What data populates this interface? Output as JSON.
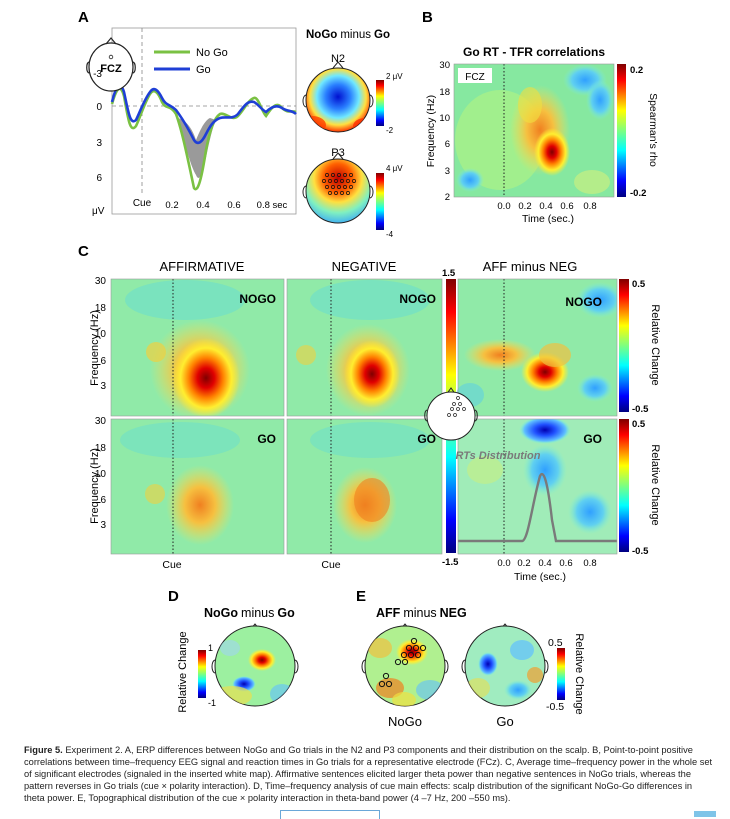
{
  "panels": {
    "A": {
      "letter": "A",
      "electrode": "FCZ",
      "legend": [
        "No Go",
        "Go"
      ],
      "title_prefix": "NoGo",
      "title_mid": "minus",
      "title_suffix": "Go",
      "y_ticks": [
        "-3",
        "0",
        "3",
        "6"
      ],
      "y_unit": "μV",
      "x_ticks": [
        "Cue",
        "0.2",
        "0.4",
        "0.6",
        "0.8 sec"
      ],
      "topo_labels": [
        "N2",
        "P3"
      ],
      "scale_n2": [
        "2 μV",
        "-2"
      ],
      "scale_p3": [
        "4 μV",
        "-4"
      ],
      "colors": {
        "nogo": "#7ac143",
        "go": "#1f3fd6",
        "diff_fill": "#9a9a9a"
      }
    },
    "B": {
      "letter": "B",
      "title": "Go RT - TFR correlations",
      "tag": "FCZ",
      "y_label": "Frequency (Hz)",
      "y_ticks": [
        "30",
        "18",
        "10",
        "6",
        "3",
        "2"
      ],
      "x_label": "Time (sec.)",
      "x_ticks": [
        "0.0",
        "0.2",
        "0.4",
        "0.6",
        "0.8"
      ],
      "cbar_label": "Spearman's rho",
      "cbar_ticks": [
        "0.2",
        "-0.2"
      ]
    },
    "C": {
      "letter": "C",
      "col_titles": [
        "AFFIRMATIVE",
        "NEGATIVE",
        "AFF minus NEG"
      ],
      "row_tags": [
        "NOGO",
        "GO"
      ],
      "y_label": "Frequency (Hz)",
      "y_ticks": [
        "30",
        "18",
        "10",
        "6",
        "3"
      ],
      "cue_label": "Cue",
      "cbar_mid": [
        "1.5",
        "-1.5"
      ],
      "cbar_right": [
        "0.5",
        "-0.5"
      ],
      "cbar_label": "Relative Change",
      "rt_label": "RTs Distribution",
      "x_label": "Time (sec.)",
      "x_ticks": [
        "0.0",
        "0.2",
        "0.4",
        "0.6",
        "0.8"
      ]
    },
    "D": {
      "letter": "D",
      "title_prefix": "NoGo",
      "title_mid": "minus",
      "title_suffix": "Go",
      "cbar_label": "Relative Change",
      "cbar_ticks": [
        "1",
        "-1"
      ]
    },
    "E": {
      "letter": "E",
      "title_prefix": "AFF",
      "title_mid": "minus",
      "title_suffix": "NEG",
      "labels": [
        "NoGo",
        "Go"
      ],
      "cbar_label": "Relative Change",
      "cbar_ticks": [
        "0.5",
        "-0.5"
      ]
    }
  },
  "caption": {
    "fig_label": "Figure 5.",
    "text": "Experiment 2. A, ERP differences between NoGo and Go trials in the N2 and P3 components and their distribution on the scalp. B, Point-to-point positive correlations between time–frequency EEG signal and reaction times in Go trials for a representative electrode (FCz). C, Average time–frequency power in the whole set of significant electrodes (signaled in the inserted white map). Affirmative sentences elicited larger theta power than negative sentences in NoGo trials, whereas the pattern reverses in Go trials (cue × polarity interaction). D, Time–frequency analysis of cue main effects: scalp distribution of the significant NoGo-Go differences in theta power. E, Topographical distribution of the cue × polarity interaction in theta-band power (4 –7 Hz, 200 –550 ms)."
  }
}
